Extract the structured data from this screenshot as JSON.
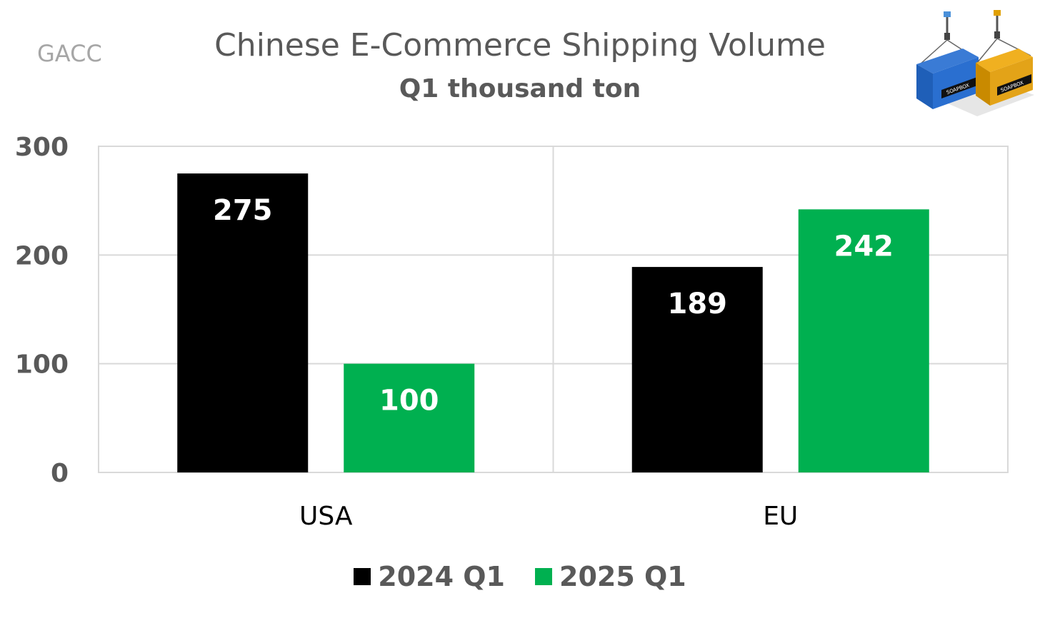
{
  "source_label": "GACC",
  "colors": {
    "series_2024": "#000000",
    "series_2025": "#00b050",
    "grid": "#d9d9d9",
    "axis_text": "#595959",
    "category_text": "#000000",
    "data_label": "#ffffff"
  },
  "chart_data": {
    "type": "bar",
    "title": "Chinese E-Commerce Shipping Volume",
    "subtitle": "Q1 thousand ton",
    "categories": [
      "USA",
      "EU"
    ],
    "series": [
      {
        "name": "2024 Q1",
        "values": [
          275,
          189
        ]
      },
      {
        "name": "2025 Q1",
        "values": [
          100,
          242
        ]
      }
    ],
    "y_ticks": [
      "0",
      "100",
      "200",
      "300"
    ],
    "ylim": [
      0,
      300
    ],
    "grid": true,
    "legend_position": "bottom",
    "data_labels": true
  },
  "logo": {
    "left_text": "SOAPBOX",
    "right_text": "SOAPBOX"
  }
}
